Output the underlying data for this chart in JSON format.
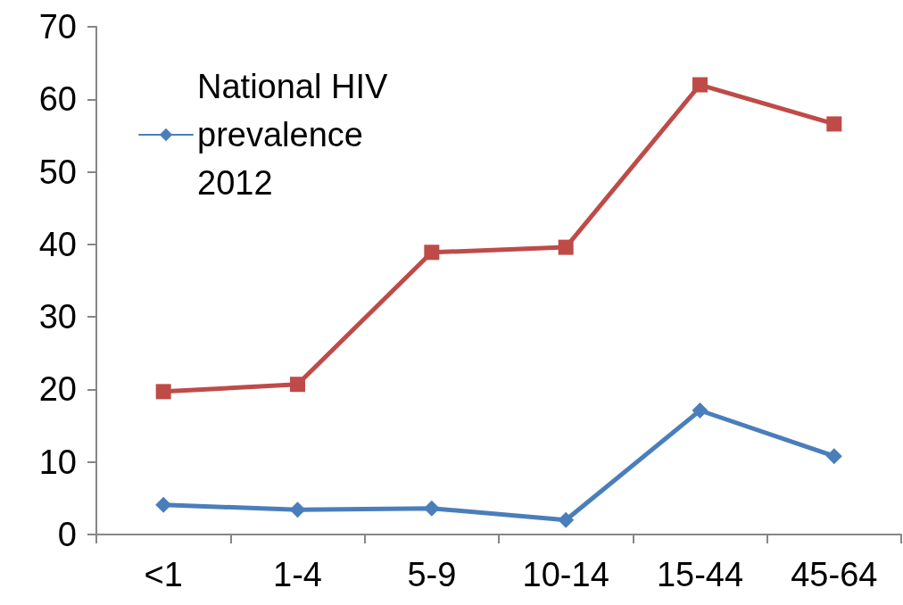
{
  "chart_data": {
    "type": "line",
    "categories": [
      "<1",
      "1-4",
      "5-9",
      "10-14",
      "15-44",
      "45-64"
    ],
    "series": [
      {
        "name": "National HIV prevalence 2012",
        "color": "#4a7ebb",
        "marker": "diamond",
        "values": [
          4.1,
          3.4,
          3.6,
          2.0,
          17.1,
          10.8
        ]
      },
      {
        "color": "#be4b48",
        "marker": "square",
        "values": [
          19.7,
          20.7,
          38.9,
          39.6,
          62.0,
          56.6
        ]
      }
    ],
    "ylim": [
      0,
      70
    ],
    "yticks": [
      0,
      10,
      20,
      30,
      40,
      50,
      60,
      70
    ],
    "grid": false,
    "legend": "top left"
  }
}
